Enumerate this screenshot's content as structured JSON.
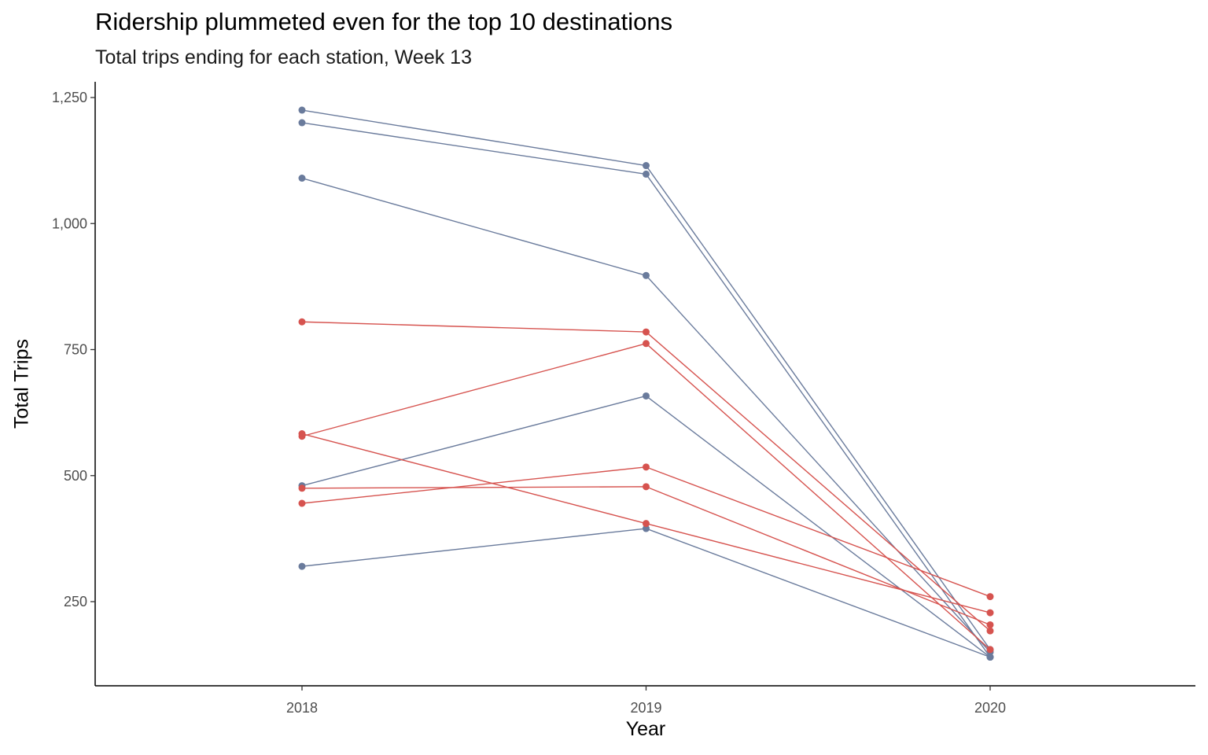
{
  "chart_data": {
    "type": "line",
    "title": "Ridership plummeted even for the top 10 destinations",
    "subtitle": "Total trips ending for each station, Week 13",
    "xlabel": "Year",
    "ylabel": "Total Trips",
    "x": [
      "2018",
      "2019",
      "2020"
    ],
    "xlim": [
      2017.4,
      2020.6
    ],
    "ylim": [
      90,
      1280
    ],
    "yticks": [
      250,
      500,
      750,
      1000,
      1250
    ],
    "ytick_labels": [
      "250",
      "500",
      "750",
      "1,000",
      "1,250"
    ],
    "grid": false,
    "legend": "none",
    "colors": {
      "blue": "#6a7b9c",
      "red": "#d6534f"
    },
    "series": [
      {
        "color": "blue",
        "values": [
          1225,
          1115,
          155
        ]
      },
      {
        "color": "blue",
        "values": [
          1200,
          1098,
          140
        ]
      },
      {
        "color": "blue",
        "values": [
          1090,
          897,
          150
        ]
      },
      {
        "color": "blue",
        "values": [
          480,
          658,
          140
        ]
      },
      {
        "color": "blue",
        "values": [
          320,
          395,
          140
        ]
      },
      {
        "color": "red",
        "values": [
          805,
          785,
          192
        ]
      },
      {
        "color": "red",
        "values": [
          578,
          762,
          155
        ]
      },
      {
        "color": "red",
        "values": [
          583,
          405,
          228
        ]
      },
      {
        "color": "red",
        "values": [
          445,
          517,
          260
        ]
      },
      {
        "color": "red",
        "values": [
          475,
          478,
          204
        ]
      }
    ]
  }
}
